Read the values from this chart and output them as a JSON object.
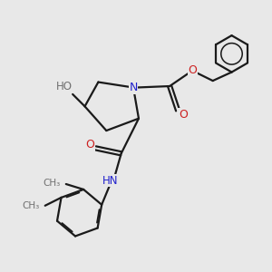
{
  "bg_color": "#e8e8e8",
  "bond_color": "#1a1a1a",
  "nitrogen_color": "#2020cc",
  "oxygen_color": "#cc2020",
  "gray_color": "#707070",
  "line_width": 1.6,
  "figsize": [
    3.0,
    3.0
  ],
  "dpi": 100,
  "xlim": [
    0,
    10
  ],
  "ylim": [
    0,
    10
  ]
}
